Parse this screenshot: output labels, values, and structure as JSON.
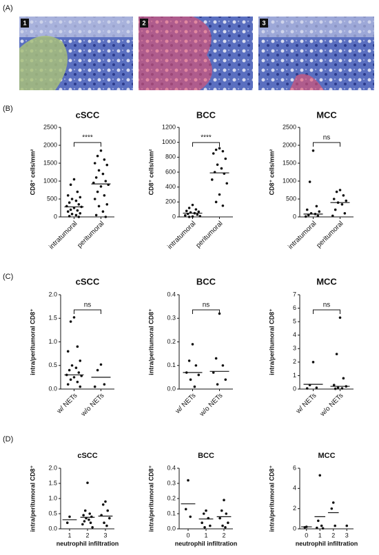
{
  "panel_labels": [
    "(A)",
    "(B)",
    "(C)",
    "(D)"
  ],
  "images": [
    {
      "label": "1"
    },
    {
      "label": "2"
    },
    {
      "label": "3"
    }
  ],
  "chart_data": [
    {
      "type": "dotplot",
      "title": "cSCC",
      "ylabel": "CD8⁺ cells/mm²",
      "categories": [
        "intratumoral",
        "peritumoral"
      ],
      "points": [
        [
          1050,
          900,
          700,
          600,
          550,
          500,
          450,
          400,
          350,
          300,
          280,
          250,
          200,
          180,
          150,
          100,
          80,
          50,
          20,
          0
        ],
        [
          1850,
          1700,
          1600,
          1500,
          1450,
          1300,
          1200,
          1100,
          1000,
          950,
          900,
          850,
          700,
          600,
          500,
          350,
          300,
          150,
          50,
          0
        ]
      ],
      "medians": [
        280,
        920
      ],
      "significance": "****",
      "ylim": [
        0,
        2500
      ],
      "yticks": [
        0,
        500,
        1000,
        1500,
        2000,
        2500
      ]
    },
    {
      "type": "dotplot",
      "title": "BCC",
      "ylabel": "CD8⁺ cells/mm²",
      "categories": [
        "intratumoral",
        "peritumoral"
      ],
      "points": [
        [
          160,
          120,
          100,
          80,
          70,
          60,
          50,
          40,
          30,
          20,
          10,
          5,
          0
        ],
        [
          920,
          900,
          880,
          850,
          780,
          700,
          650,
          600,
          580,
          500,
          450,
          300,
          200,
          150
        ]
      ],
      "medians": [
        50,
        590
      ],
      "significance": "****",
      "ylim": [
        0,
        1200
      ],
      "yticks": [
        0,
        200,
        400,
        600,
        800,
        1000,
        1200
      ]
    },
    {
      "type": "dotplot",
      "title": "MCC",
      "ylabel": "CD8⁺ cells/mm²",
      "categories": [
        "intratumoral",
        "peritumoral"
      ],
      "points": [
        [
          1850,
          980,
          300,
          200,
          150,
          100,
          80,
          50,
          30,
          10
        ],
        [
          750,
          700,
          600,
          500,
          450,
          400,
          350,
          200,
          100,
          30
        ]
      ],
      "medians": [
        80,
        400
      ],
      "significance": "ns",
      "ylim": [
        0,
        2500
      ],
      "yticks": [
        0,
        500,
        1000,
        1500,
        2000,
        2500
      ]
    },
    {
      "type": "dotplot",
      "title": "cSCC",
      "ylabel": "intra/peritumoral CD8⁺",
      "categories": [
        "w/ NETs",
        "w/o NETs"
      ],
      "points": [
        [
          1.52,
          1.43,
          0.9,
          0.8,
          0.6,
          0.5,
          0.45,
          0.4,
          0.35,
          0.3,
          0.28,
          0.25,
          0.2,
          0.15,
          0.1,
          0.05
        ],
        [
          0.52,
          0.4,
          0.1,
          0.05
        ]
      ],
      "medians": [
        0.3,
        0.25
      ],
      "significance": "ns",
      "ylim": [
        0,
        2.0
      ],
      "yticks": [
        {
          "value": 0,
          "label": "0.0"
        },
        {
          "value": 0.5,
          "label": "0.5"
        },
        {
          "value": 1,
          "label": "1.0"
        },
        {
          "value": 1.5,
          "label": "1.5"
        },
        {
          "value": 2,
          "label": "2.0"
        }
      ]
    },
    {
      "type": "dotplot",
      "title": "BCC",
      "ylabel": "intra/peritumoral CD8⁺",
      "categories": [
        "w/ NETs",
        "w/o NETs"
      ],
      "points": [
        [
          0.19,
          0.12,
          0.1,
          0.07,
          0.06,
          0.04,
          0.01
        ],
        [
          0.32,
          0.13,
          0.1,
          0.07,
          0.04,
          0.02
        ]
      ],
      "medians": [
        0.07,
        0.075
      ],
      "significance": "ns",
      "ylim": [
        0,
        0.4
      ],
      "yticks": [
        {
          "value": 0,
          "label": "0.0"
        },
        0.1,
        0.2,
        0.3,
        0.4
      ]
    },
    {
      "type": "dotplot",
      "title": "MCC",
      "ylabel": "intra/peritumoral CD8⁺",
      "categories": [
        "w/ NETs",
        "w/o NETs"
      ],
      "points": [
        [
          2.0,
          0.3,
          0.1,
          0.05
        ],
        [
          5.3,
          2.6,
          0.8,
          0.3,
          0.2,
          0.1,
          0.05,
          0.02
        ]
      ],
      "medians": [
        0.35,
        0.2
      ],
      "significance": "ns",
      "ylim": [
        0,
        7
      ],
      "yticks": [
        0,
        1,
        2,
        3,
        4,
        5,
        6,
        7
      ]
    },
    {
      "type": "dotplot",
      "title": "cSCC",
      "ylabel": "intra/peritumoral CD8⁺",
      "xlabel": "neutrophil infiltration",
      "categories": [
        "1",
        "2",
        "3"
      ],
      "points": [
        [
          0.4,
          0.2
        ],
        [
          1.52,
          0.6,
          0.5,
          0.45,
          0.4,
          0.35,
          0.3,
          0.25,
          0.2,
          0.15,
          0.05
        ],
        [
          0.9,
          0.8,
          0.6,
          0.45,
          0.35,
          0.2,
          0.1
        ]
      ],
      "medians": [
        0.3,
        0.38,
        0.42
      ],
      "ylim": [
        0,
        2.0
      ],
      "yticks": [
        {
          "value": 0,
          "label": "0.0"
        },
        {
          "value": 0.5,
          "label": "0.5"
        },
        {
          "value": 1,
          "label": "1.0"
        },
        {
          "value": 1.5,
          "label": "1.5"
        },
        {
          "value": 2,
          "label": "2.0"
        }
      ]
    },
    {
      "type": "dotplot",
      "title": "BCC",
      "ylabel": "intra/peritumoral CD8⁺",
      "xlabel": "neutrophil infiltration",
      "categories": [
        "0",
        "1",
        "2"
      ],
      "points": [
        [
          0.32,
          0.13,
          0.08
        ],
        [
          0.12,
          0.1,
          0.07,
          0.04,
          0.02,
          0.01
        ],
        [
          0.19,
          0.12,
          0.1,
          0.07,
          0.04,
          0.02,
          0.01
        ]
      ],
      "medians": [
        0.165,
        0.065,
        0.08
      ],
      "ylim": [
        0,
        0.4
      ],
      "yticks": [
        {
          "value": 0,
          "label": "0.0"
        },
        0.1,
        0.2,
        0.3,
        0.4
      ]
    },
    {
      "type": "dotplot",
      "title": "MCC",
      "ylabel": "intra/peritumoral CD8⁺",
      "xlabel": "neutrophil infiltration",
      "categories": [
        "0",
        "1",
        "2",
        "3"
      ],
      "points": [
        [
          0.2,
          0.15
        ],
        [
          5.3,
          0.8,
          0.3,
          0.1,
          0.05
        ],
        [
          2.6,
          2.0,
          0.3
        ],
        [
          0.3
        ]
      ],
      "medians": [
        0.2,
        1.2,
        1.6,
        null
      ],
      "ylim": [
        0,
        6
      ],
      "yticks": [
        0,
        2,
        4,
        6
      ]
    }
  ]
}
